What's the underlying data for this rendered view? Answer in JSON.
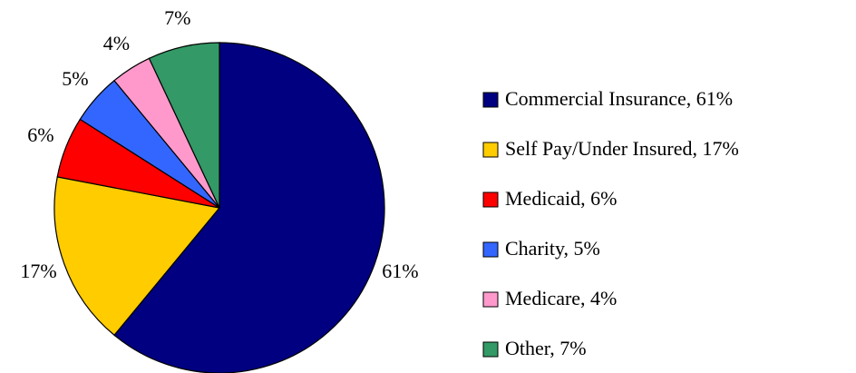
{
  "chart_data": {
    "type": "pie",
    "categories": [
      "Commercial Insurance, 61%",
      "Self Pay/Under Insured, 17%",
      "Medicaid, 6%",
      "Charity, 5%",
      "Medicare, 4%",
      "Other, 7%"
    ],
    "values": [
      61,
      17,
      6,
      5,
      4,
      7
    ],
    "value_labels": [
      "61%",
      "17%",
      "6%",
      "5%",
      "4%",
      "7%"
    ],
    "colors": [
      "#000080",
      "#ffcc00",
      "#ff0000",
      "#3366ff",
      "#ff99cc",
      "#339966"
    ],
    "legend": "right"
  }
}
